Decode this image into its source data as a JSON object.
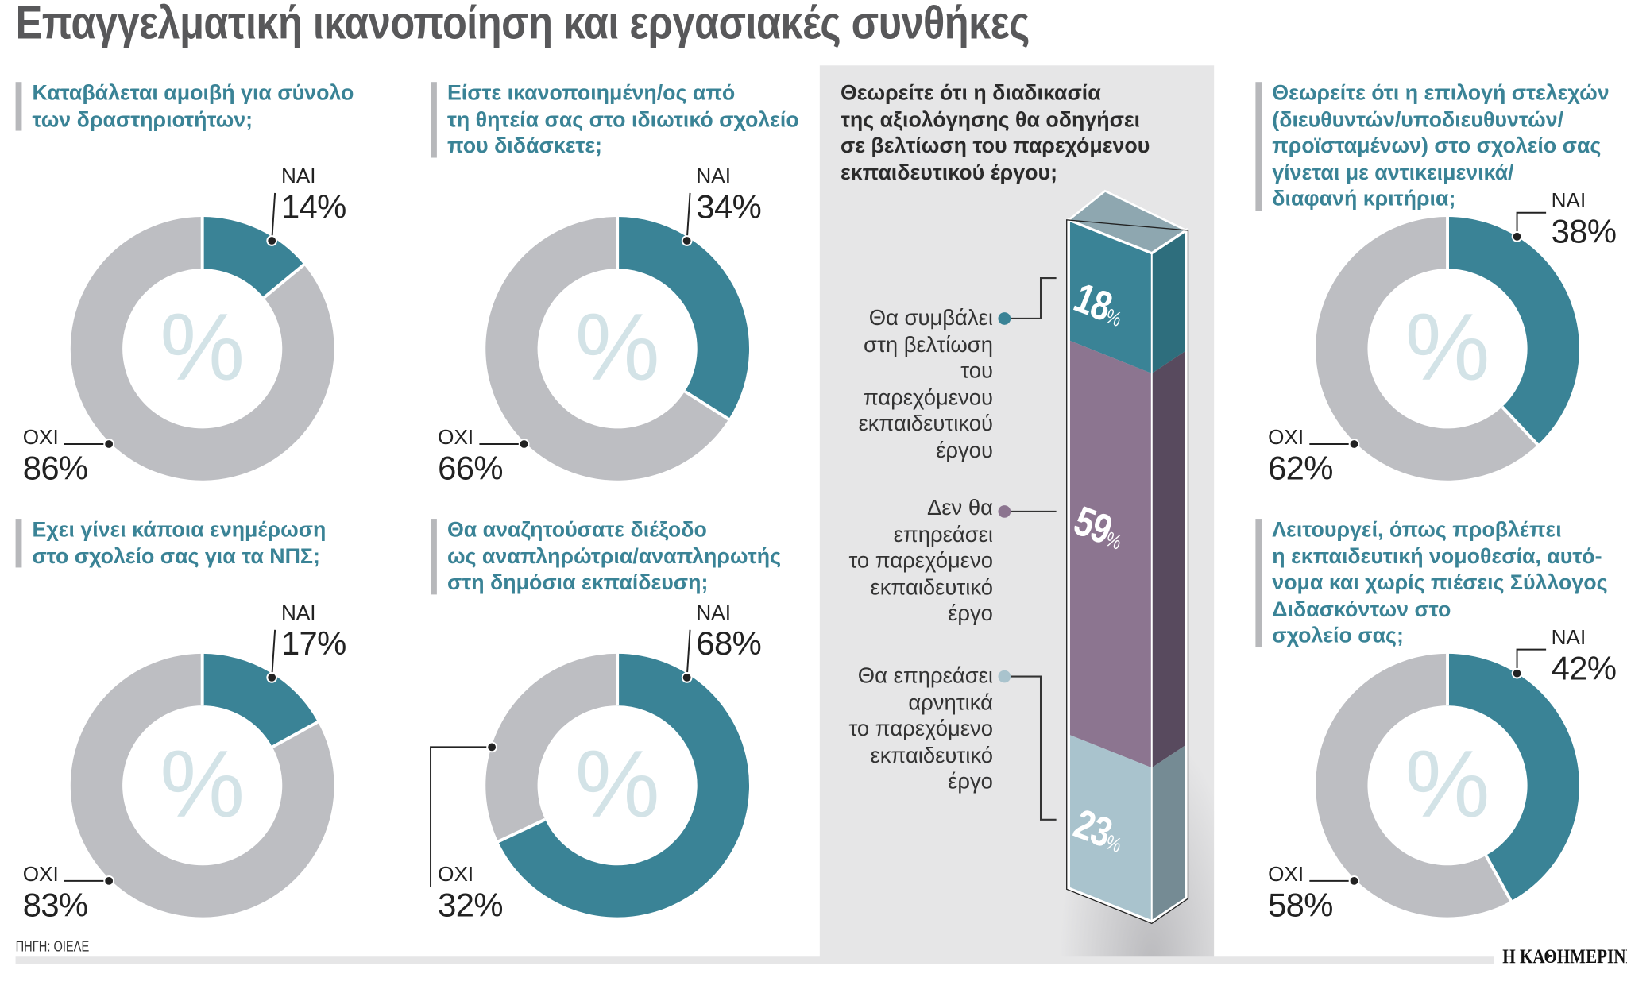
{
  "title": "Επαγγελματική ικανοποίηση και εργασιακές συνθήκες",
  "source": "ΠΗΓΗ: ΟΙΕΛΕ",
  "brand": "Η ΚΑΘΗΜΕΡΙΝΗ",
  "watermark": "%",
  "colors": {
    "yes": "#3a8396",
    "no": "#bdbec2",
    "watermark": "#d3e3e7",
    "panel": "#e6e6e7",
    "bar_improve": "#3a8396",
    "bar_neutral": "#8c7590",
    "bar_negative": "#a9c3cd"
  },
  "chart_data": [
    {
      "type": "pie",
      "title": "Καταβάλεται αμοιβή για σύνολο\nτων δραστηριοτήτων;",
      "categories": [
        "ΝΑΙ",
        "ΟΧΙ"
      ],
      "values": [
        14,
        86
      ],
      "value_labels": [
        "14%",
        "86%"
      ]
    },
    {
      "type": "pie",
      "title": "Είστε ικανοποιημένη/ος από\nτη θητεία σας στο ιδιωτικό σχολείο\nπου διδάσκετε;",
      "categories": [
        "ΝΑΙ",
        "ΟΧΙ"
      ],
      "values": [
        34,
        66
      ],
      "value_labels": [
        "34%",
        "66%"
      ]
    },
    {
      "type": "pie",
      "title": "Εχει γίνει κάποια ενημέρωση\nστο σχολείο σας για τα ΝΠΣ;",
      "categories": [
        "ΝΑΙ",
        "ΟΧΙ"
      ],
      "values": [
        17,
        83
      ],
      "value_labels": [
        "17%",
        "83%"
      ]
    },
    {
      "type": "pie",
      "title": "Θα αναζητούσατε διέξοδο\nως αναπληρώτρια/αναπληρωτής\nστη δημόσια εκπαίδευση;",
      "categories": [
        "ΝΑΙ",
        "ΟΧΙ"
      ],
      "values": [
        68,
        32
      ],
      "value_labels": [
        "68%",
        "32%"
      ]
    },
    {
      "type": "bar",
      "stacked": true,
      "title": "Θεωρείτε ότι η διαδικασία\nτης αξιολόγησης θα οδηγήσει\nσε βελτίωση του παρεχόμενου\nεκπαιδευτικού έργου;",
      "categories": [
        "Θα συμβάλει\nστη βελτίωση\nτου\nπαρεχόμενου\nεκπαιδευτικού\nέργου",
        "Δεν θα\nεπηρεάσει\nτο παρεχόμενο\nεκπαιδευτικό\nέργο",
        "Θα επηρεάσει\nαρνητικά\nτο παρεχόμενο\nεκπαιδευτικό\nέργο"
      ],
      "values": [
        18,
        59,
        23
      ],
      "value_labels": [
        "18",
        "59",
        "23"
      ],
      "unit": "%"
    },
    {
      "type": "pie",
      "title": "Θεωρείτε ότι η επιλογή στελεχών\n(διευθυντών/υποδιευθυντών/\nπροϊσταμένων) στο σχολείο σας\nγίνεται με αντικειμενικά/\nδιαφανή κριτήρια;",
      "categories": [
        "ΝΑΙ",
        "ΟΧΙ"
      ],
      "values": [
        38,
        62
      ],
      "value_labels": [
        "38%",
        "62%"
      ]
    },
    {
      "type": "pie",
      "title": "Λειτουργεί, όπως προβλέπει\nη εκπαιδευτική νομοθεσία, αυτό-\nνομα και χωρίς πιέσεις Σύλλογος\nΔιδασκόντων στο\nσχολείο σας;",
      "categories": [
        "ΝΑΙ",
        "ΟΧΙ"
      ],
      "values": [
        42,
        58
      ],
      "value_labels": [
        "42%",
        "58%"
      ]
    }
  ]
}
